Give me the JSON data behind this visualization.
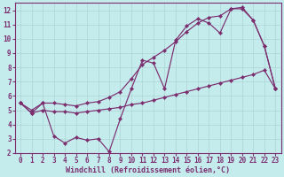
{
  "xlabel": "Windchill (Refroidissement éolien,°C)",
  "xlim": [
    -0.5,
    23.5
  ],
  "ylim": [
    2,
    12.5
  ],
  "xticks": [
    0,
    1,
    2,
    3,
    4,
    5,
    6,
    7,
    8,
    9,
    10,
    11,
    12,
    13,
    14,
    15,
    16,
    17,
    18,
    19,
    20,
    21,
    22,
    23
  ],
  "yticks": [
    2,
    3,
    4,
    5,
    6,
    7,
    8,
    9,
    10,
    11,
    12
  ],
  "bg_color": "#c5eced",
  "grid_color": "#aed4d6",
  "line_color": "#7b2d6e",
  "top_x": [
    0,
    1,
    2,
    3,
    4,
    5,
    6,
    7,
    8,
    9,
    10,
    11,
    12,
    13,
    14,
    15,
    16,
    17,
    18,
    19,
    20,
    21,
    22,
    23
  ],
  "top_y": [
    5.5,
    5.0,
    5.5,
    5.5,
    5.4,
    5.3,
    5.5,
    5.6,
    5.9,
    6.3,
    7.2,
    8.2,
    8.7,
    9.2,
    9.8,
    10.5,
    11.1,
    11.5,
    11.6,
    12.1,
    12.1,
    11.3,
    9.5,
    6.5
  ],
  "mid_x": [
    0,
    1,
    2,
    3,
    4,
    5,
    6,
    7,
    8,
    9,
    10,
    11,
    12,
    13,
    14,
    15,
    16,
    17,
    18,
    19,
    20,
    21,
    22,
    23
  ],
  "mid_y": [
    5.5,
    4.8,
    5.5,
    3.2,
    2.7,
    3.1,
    2.9,
    3.0,
    2.1,
    4.4,
    6.5,
    8.5,
    8.3,
    6.5,
    9.9,
    10.9,
    11.4,
    11.1,
    10.4,
    12.1,
    12.2,
    11.3,
    9.5,
    6.5
  ],
  "bot_x": [
    0,
    1,
    2,
    3,
    4,
    5,
    6,
    7,
    8,
    9,
    10,
    11,
    12,
    13,
    14,
    15,
    16,
    17,
    18,
    19,
    20,
    21,
    22,
    23
  ],
  "bot_y": [
    5.5,
    4.8,
    5.0,
    4.9,
    4.9,
    4.8,
    4.9,
    5.0,
    5.1,
    5.2,
    5.4,
    5.5,
    5.7,
    5.9,
    6.1,
    6.3,
    6.5,
    6.7,
    6.9,
    7.1,
    7.3,
    7.5,
    7.8,
    6.5
  ],
  "tick_fontsize": 5.5,
  "label_fontsize": 6.0,
  "markersize": 2.2,
  "linewidth": 0.85
}
